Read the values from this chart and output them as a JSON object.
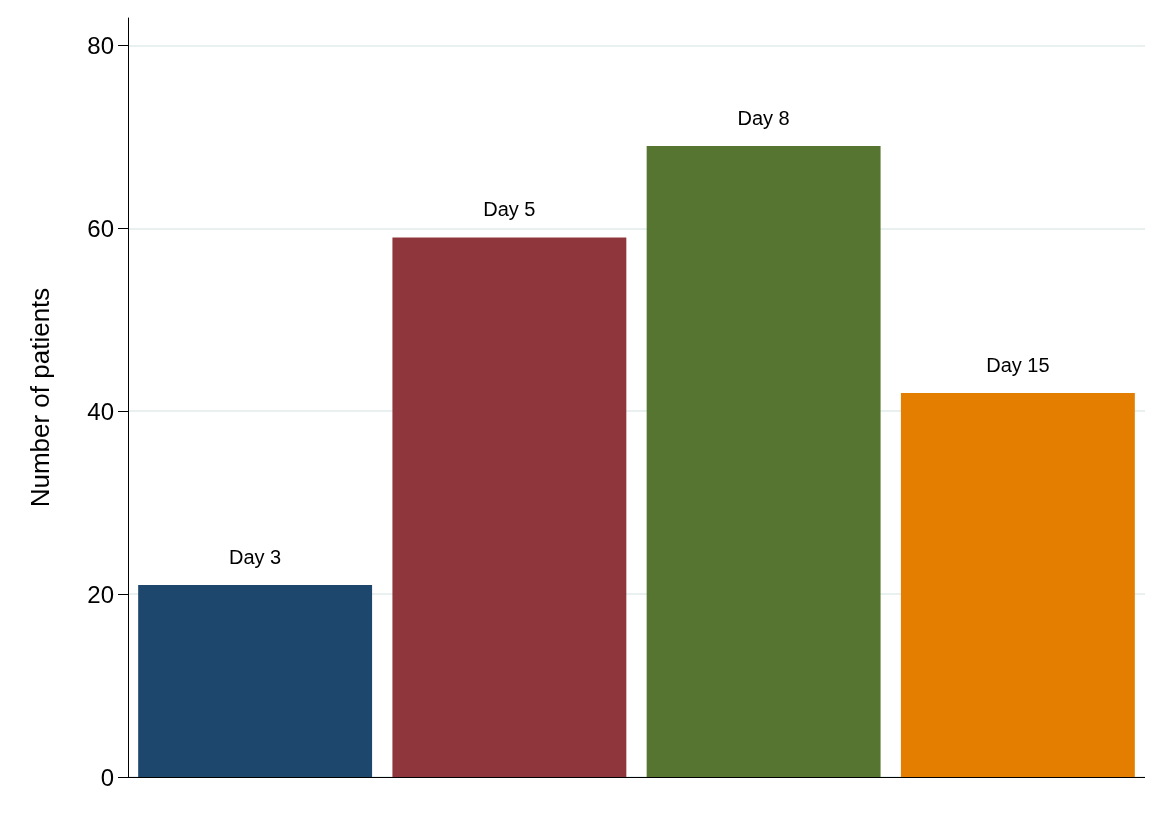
{
  "chart_data": {
    "type": "bar",
    "ylabel": "Number of patients",
    "categories": [
      "Day 3",
      "Day 5",
      "Day 8",
      "Day 15"
    ],
    "values": [
      21,
      59,
      69,
      42
    ],
    "colors": [
      "#1d476d",
      "#8f363d",
      "#567530",
      "#e37e00"
    ],
    "ylim": [
      0,
      83
    ],
    "yticks": [
      0,
      20,
      40,
      60,
      80
    ],
    "grid": "y",
    "tick_labels": "y"
  }
}
